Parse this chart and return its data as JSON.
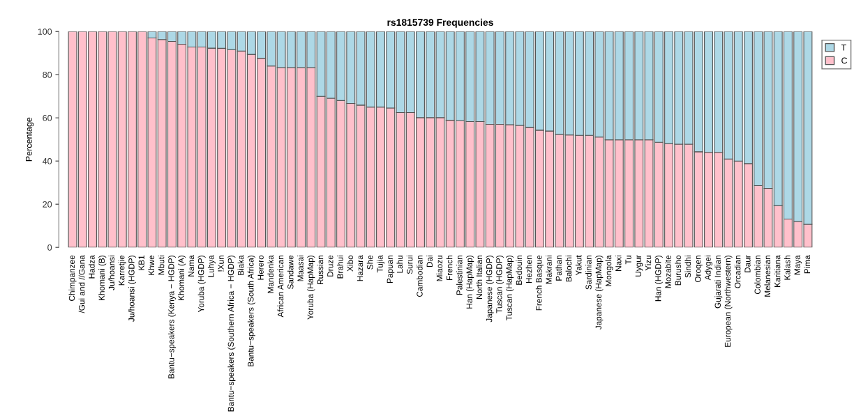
{
  "chart_data": {
    "type": "bar",
    "title": "rs1815739 Frequencies",
    "ylabel": "Percentage",
    "categories": [
      "Chimpanzee",
      "/Gui and //Gana",
      "Hadza",
      "Khomani (B)",
      "Ju/hoansi",
      "Karretjie",
      "Ju/hoansi (HGDP)",
      "KB1",
      "Khwe",
      "Mbuti",
      "Bantu−speakers (Kenya − HGDP)",
      "Khomani (A)",
      "Nama",
      "Yoruba (HGDP)",
      "Luhya",
      "!Xun",
      "Bantu−speakers (Southern Africa − HGDP)",
      "Biaka",
      "Bantu−speakers (South Africa)",
      "Herero",
      "Mandenka",
      "African American",
      "Sandawe",
      "Maasai",
      "Yoruba (HapMap)",
      "Russian",
      "Druze",
      "Brahui",
      "Xibo",
      "Hazara",
      "She",
      "Tujia",
      "Papuan",
      "Lahu",
      "Surui",
      "Cambodian",
      "Dai",
      "Miaozu",
      "French",
      "Palestinian",
      "Han (HapMap)",
      "North Italian",
      "Japanese (HGDP)",
      "Tuscan (HGDP)",
      "Tuscan (HapMap)",
      "Bedouin",
      "Hezhen",
      "French Basque",
      "Makrani",
      "Pathan",
      "Balochi",
      "Yakut",
      "Sardinian",
      "Japanese (HapMap)",
      "Mongola",
      "Naxi",
      "Tu",
      "Uygur",
      "Yizu",
      "Han (HGDP)",
      "Mozabite",
      "Burusho",
      "Sindhi",
      "Oroqen",
      "Adygei",
      "Gujarati Indian",
      "European (Northwestern)",
      "Orcadian",
      "Daur",
      "Colombian",
      "Melanesian",
      "Karitiana",
      "Kalash",
      "Maya",
      "Pima"
    ],
    "stacked": true,
    "series": [
      {
        "name": "C",
        "color": "#ffc0cb",
        "values": [
          100,
          100,
          100,
          100,
          100,
          100,
          100,
          100,
          97.0,
          96.3,
          95.4,
          94.1,
          92.8,
          92.8,
          92.3,
          92.2,
          91.6,
          90.9,
          89.4,
          87.6,
          84.0,
          83.3,
          83.3,
          83.3,
          83.3,
          70.0,
          69.1,
          68.0,
          66.7,
          65.9,
          65.0,
          65.0,
          64.6,
          62.5,
          62.5,
          60.1,
          60.1,
          60.1,
          58.9,
          58.7,
          58.3,
          58.3,
          57.0,
          57.0,
          56.8,
          56.5,
          55.6,
          54.3,
          53.9,
          52.3,
          52.1,
          51.9,
          51.9,
          51.1,
          49.8,
          49.8,
          49.8,
          49.8,
          49.8,
          48.7,
          48.0,
          47.8,
          47.8,
          44.3,
          44.0,
          44.0,
          40.9,
          40.0,
          38.8,
          28.6,
          27.3,
          19.3,
          13.1,
          12.0,
          10.7
        ]
      },
      {
        "name": "T",
        "color": "#add8e6",
        "values": [
          null,
          null,
          null,
          null,
          null,
          null,
          null,
          null,
          3.0,
          3.7,
          4.6,
          5.9,
          7.2,
          7.2,
          7.7,
          7.8,
          8.4,
          9.1,
          10.6,
          12.4,
          16.0,
          16.7,
          16.7,
          16.7,
          16.7,
          30.0,
          30.9,
          32.0,
          33.3,
          34.1,
          35.0,
          35.0,
          35.4,
          37.5,
          37.5,
          39.9,
          39.9,
          39.9,
          41.1,
          41.3,
          41.7,
          41.7,
          43.0,
          43.0,
          43.2,
          43.5,
          44.4,
          45.7,
          46.1,
          47.7,
          47.9,
          48.1,
          48.1,
          48.9,
          50.2,
          50.2,
          50.2,
          50.2,
          50.2,
          51.3,
          52.0,
          52.2,
          52.2,
          55.7,
          56.0,
          56.0,
          59.1,
          60.0,
          61.2,
          71.4,
          72.7,
          80.7,
          86.9,
          88.0,
          89.3
        ]
      }
    ],
    "ylim": [
      0,
      100
    ],
    "yticks": [
      0,
      20,
      40,
      60,
      80,
      100
    ],
    "legend": "top right",
    "grid": false
  }
}
